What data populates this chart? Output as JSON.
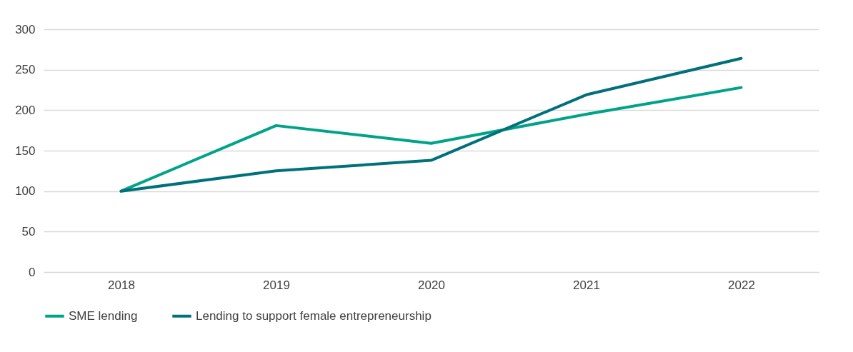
{
  "chart_data": {
    "type": "line",
    "categories": [
      "2018",
      "2019",
      "2020",
      "2021",
      "2022"
    ],
    "series": [
      {
        "name": "SME lending",
        "color": "#00a389",
        "values": [
          100,
          181,
          159,
          195,
          228
        ]
      },
      {
        "name": "Lending to support female entrepreneurship",
        "color": "#00707a",
        "values": [
          100,
          125,
          138,
          219,
          264
        ]
      }
    ],
    "ylim": [
      0,
      300
    ],
    "yticks": [
      0,
      50,
      100,
      150,
      200,
      250,
      300
    ],
    "grid": "y",
    "legend": "bottom",
    "marker": "none",
    "line_style": "solid"
  }
}
